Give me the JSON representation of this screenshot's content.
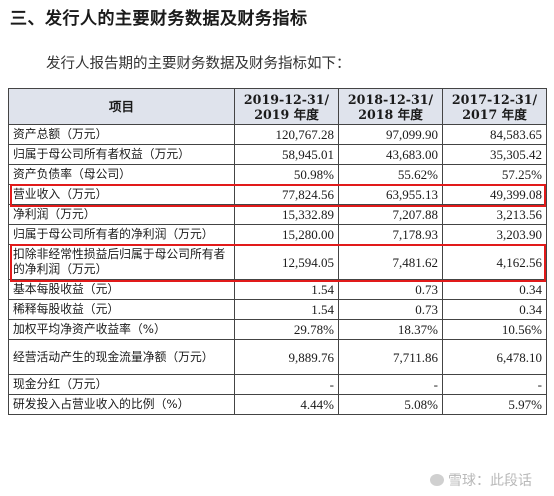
{
  "heading": "三、发行人的主要财务数据及财务指标",
  "intro": "发行人报告期的主要财务数据及财务指标如下：",
  "table": {
    "col_item": "项目",
    "periods": [
      {
        "line1": "2019-12-31/",
        "line2": "2019 年度"
      },
      {
        "line1": "2018-12-31/",
        "line2": "2018 年度"
      },
      {
        "line1": "2017-12-31/",
        "line2": "2017 年度"
      }
    ],
    "rows": [
      {
        "label": "资产总额（万元）",
        "values": [
          "120,767.28",
          "97,099.90",
          "84,583.65"
        ]
      },
      {
        "label": "归属于母公司所有者权益（万元）",
        "values": [
          "58,945.01",
          "43,683.00",
          "35,305.42"
        ]
      },
      {
        "label": "资产负债率（母公司）",
        "values": [
          "50.98%",
          "55.62%",
          "57.25%"
        ]
      },
      {
        "label": "营业收入（万元）",
        "values": [
          "77,824.56",
          "63,955.13",
          "49,399.08"
        ]
      },
      {
        "label": "净利润（万元）",
        "values": [
          "15,332.89",
          "7,207.88",
          "3,213.56"
        ]
      },
      {
        "label": "归属于母公司所有者的净利润（万元）",
        "values": [
          "15,280.00",
          "7,178.93",
          "3,203.90"
        ]
      },
      {
        "label": "扣除非经常性损益后归属于母公司所有者的净利润（万元）",
        "values": [
          "12,594.05",
          "7,481.62",
          "4,162.56"
        ]
      },
      {
        "label": "基本每股收益（元）",
        "values": [
          "1.54",
          "0.73",
          "0.34"
        ]
      },
      {
        "label": "稀释每股收益（元）",
        "values": [
          "1.54",
          "0.73",
          "0.34"
        ]
      },
      {
        "label": "加权平均净资产收益率（%）",
        "values": [
          "29.78%",
          "18.37%",
          "10.56%"
        ]
      },
      {
        "label": "经营活动产生的现金流量净额（万元）",
        "values": [
          "9,889.76",
          "7,711.86",
          "6,478.10"
        ]
      },
      {
        "label": "现金分红（万元）",
        "values": [
          "-",
          "-",
          "-"
        ]
      },
      {
        "label": "研发投入占营业收入的比例（%）",
        "values": [
          "4.44%",
          "5.08%",
          "5.97%"
        ]
      }
    ]
  },
  "watermark": "雪球：此段话",
  "highlight_color": "#e11a1a",
  "header_bg": "#dfe3ec"
}
